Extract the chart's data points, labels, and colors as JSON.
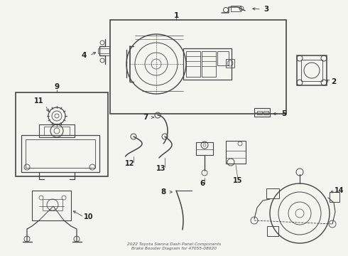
{
  "bg_color": "#f5f5f0",
  "line_color": "#444444",
  "label_color": "#222222",
  "title": "2022 Toyota Sienna Dash Panel Components\nBrake Booster Diagram for 47055-08020",
  "fig_w": 4.9,
  "fig_h": 3.6,
  "dpi": 100
}
